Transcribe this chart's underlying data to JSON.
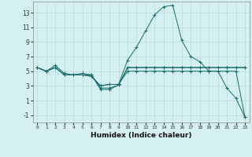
{
  "bg_color": "#d4f0f0",
  "grid_color": "#b8dcdc",
  "line_color": "#1a6b6b",
  "xlabel": "Humidex (Indice chaleur)",
  "xlim": [
    -0.5,
    23.5
  ],
  "ylim": [
    -2,
    14.5
  ],
  "yticks": [
    -1,
    1,
    3,
    5,
    7,
    9,
    11,
    13
  ],
  "xticks": [
    0,
    1,
    2,
    3,
    4,
    5,
    6,
    7,
    8,
    9,
    10,
    11,
    12,
    13,
    14,
    15,
    16,
    17,
    18,
    19,
    20,
    21,
    22,
    23
  ],
  "series": [
    {
      "x": [
        0,
        1,
        2,
        3,
        4,
        5,
        6,
        7,
        8,
        9,
        10,
        11,
        12,
        13,
        14,
        15,
        16,
        17,
        18,
        19,
        20,
        21,
        22,
        23
      ],
      "y": [
        5.5,
        5.0,
        5.5,
        4.5,
        4.5,
        4.5,
        4.5,
        2.7,
        2.7,
        3.1,
        5.5,
        5.5,
        5.5,
        5.5,
        5.5,
        5.5,
        5.5,
        5.5,
        5.5,
        5.5,
        5.5,
        5.5,
        5.5,
        5.5
      ]
    },
    {
      "x": [
        0,
        1,
        2,
        3,
        4,
        5,
        6,
        7,
        8,
        9,
        10,
        11,
        12,
        13,
        14,
        15,
        16,
        17,
        18,
        19,
        20,
        21,
        22,
        23
      ],
      "y": [
        5.5,
        5.0,
        5.8,
        4.7,
        4.5,
        4.7,
        4.5,
        2.5,
        2.5,
        3.1,
        5.5,
        5.5,
        5.5,
        5.5,
        5.5,
        5.5,
        5.5,
        5.5,
        5.5,
        5.5,
        5.5,
        5.5,
        5.5,
        5.5
      ]
    },
    {
      "x": [
        0,
        1,
        2,
        3,
        4,
        5,
        6,
        7,
        8,
        9,
        10,
        11,
        12,
        13,
        14,
        15,
        16,
        17,
        18,
        19,
        20,
        21,
        22,
        23
      ],
      "y": [
        5.5,
        5.0,
        5.5,
        4.5,
        4.5,
        4.5,
        4.3,
        3.0,
        3.2,
        3.2,
        6.5,
        8.3,
        10.5,
        12.7,
        13.8,
        14.0,
        9.2,
        7.0,
        6.3,
        5.0,
        5.0,
        2.7,
        1.3,
        -1.3
      ]
    },
    {
      "x": [
        0,
        1,
        2,
        3,
        4,
        5,
        6,
        7,
        8,
        9,
        10,
        11,
        12,
        13,
        14,
        15,
        16,
        17,
        18,
        19,
        20,
        21,
        22,
        23
      ],
      "y": [
        5.5,
        5.0,
        5.5,
        4.5,
        4.5,
        4.5,
        4.3,
        3.0,
        3.2,
        3.2,
        5.0,
        5.0,
        5.0,
        5.0,
        5.0,
        5.0,
        5.0,
        5.0,
        5.0,
        5.0,
        5.0,
        5.0,
        5.0,
        -1.3
      ]
    }
  ]
}
